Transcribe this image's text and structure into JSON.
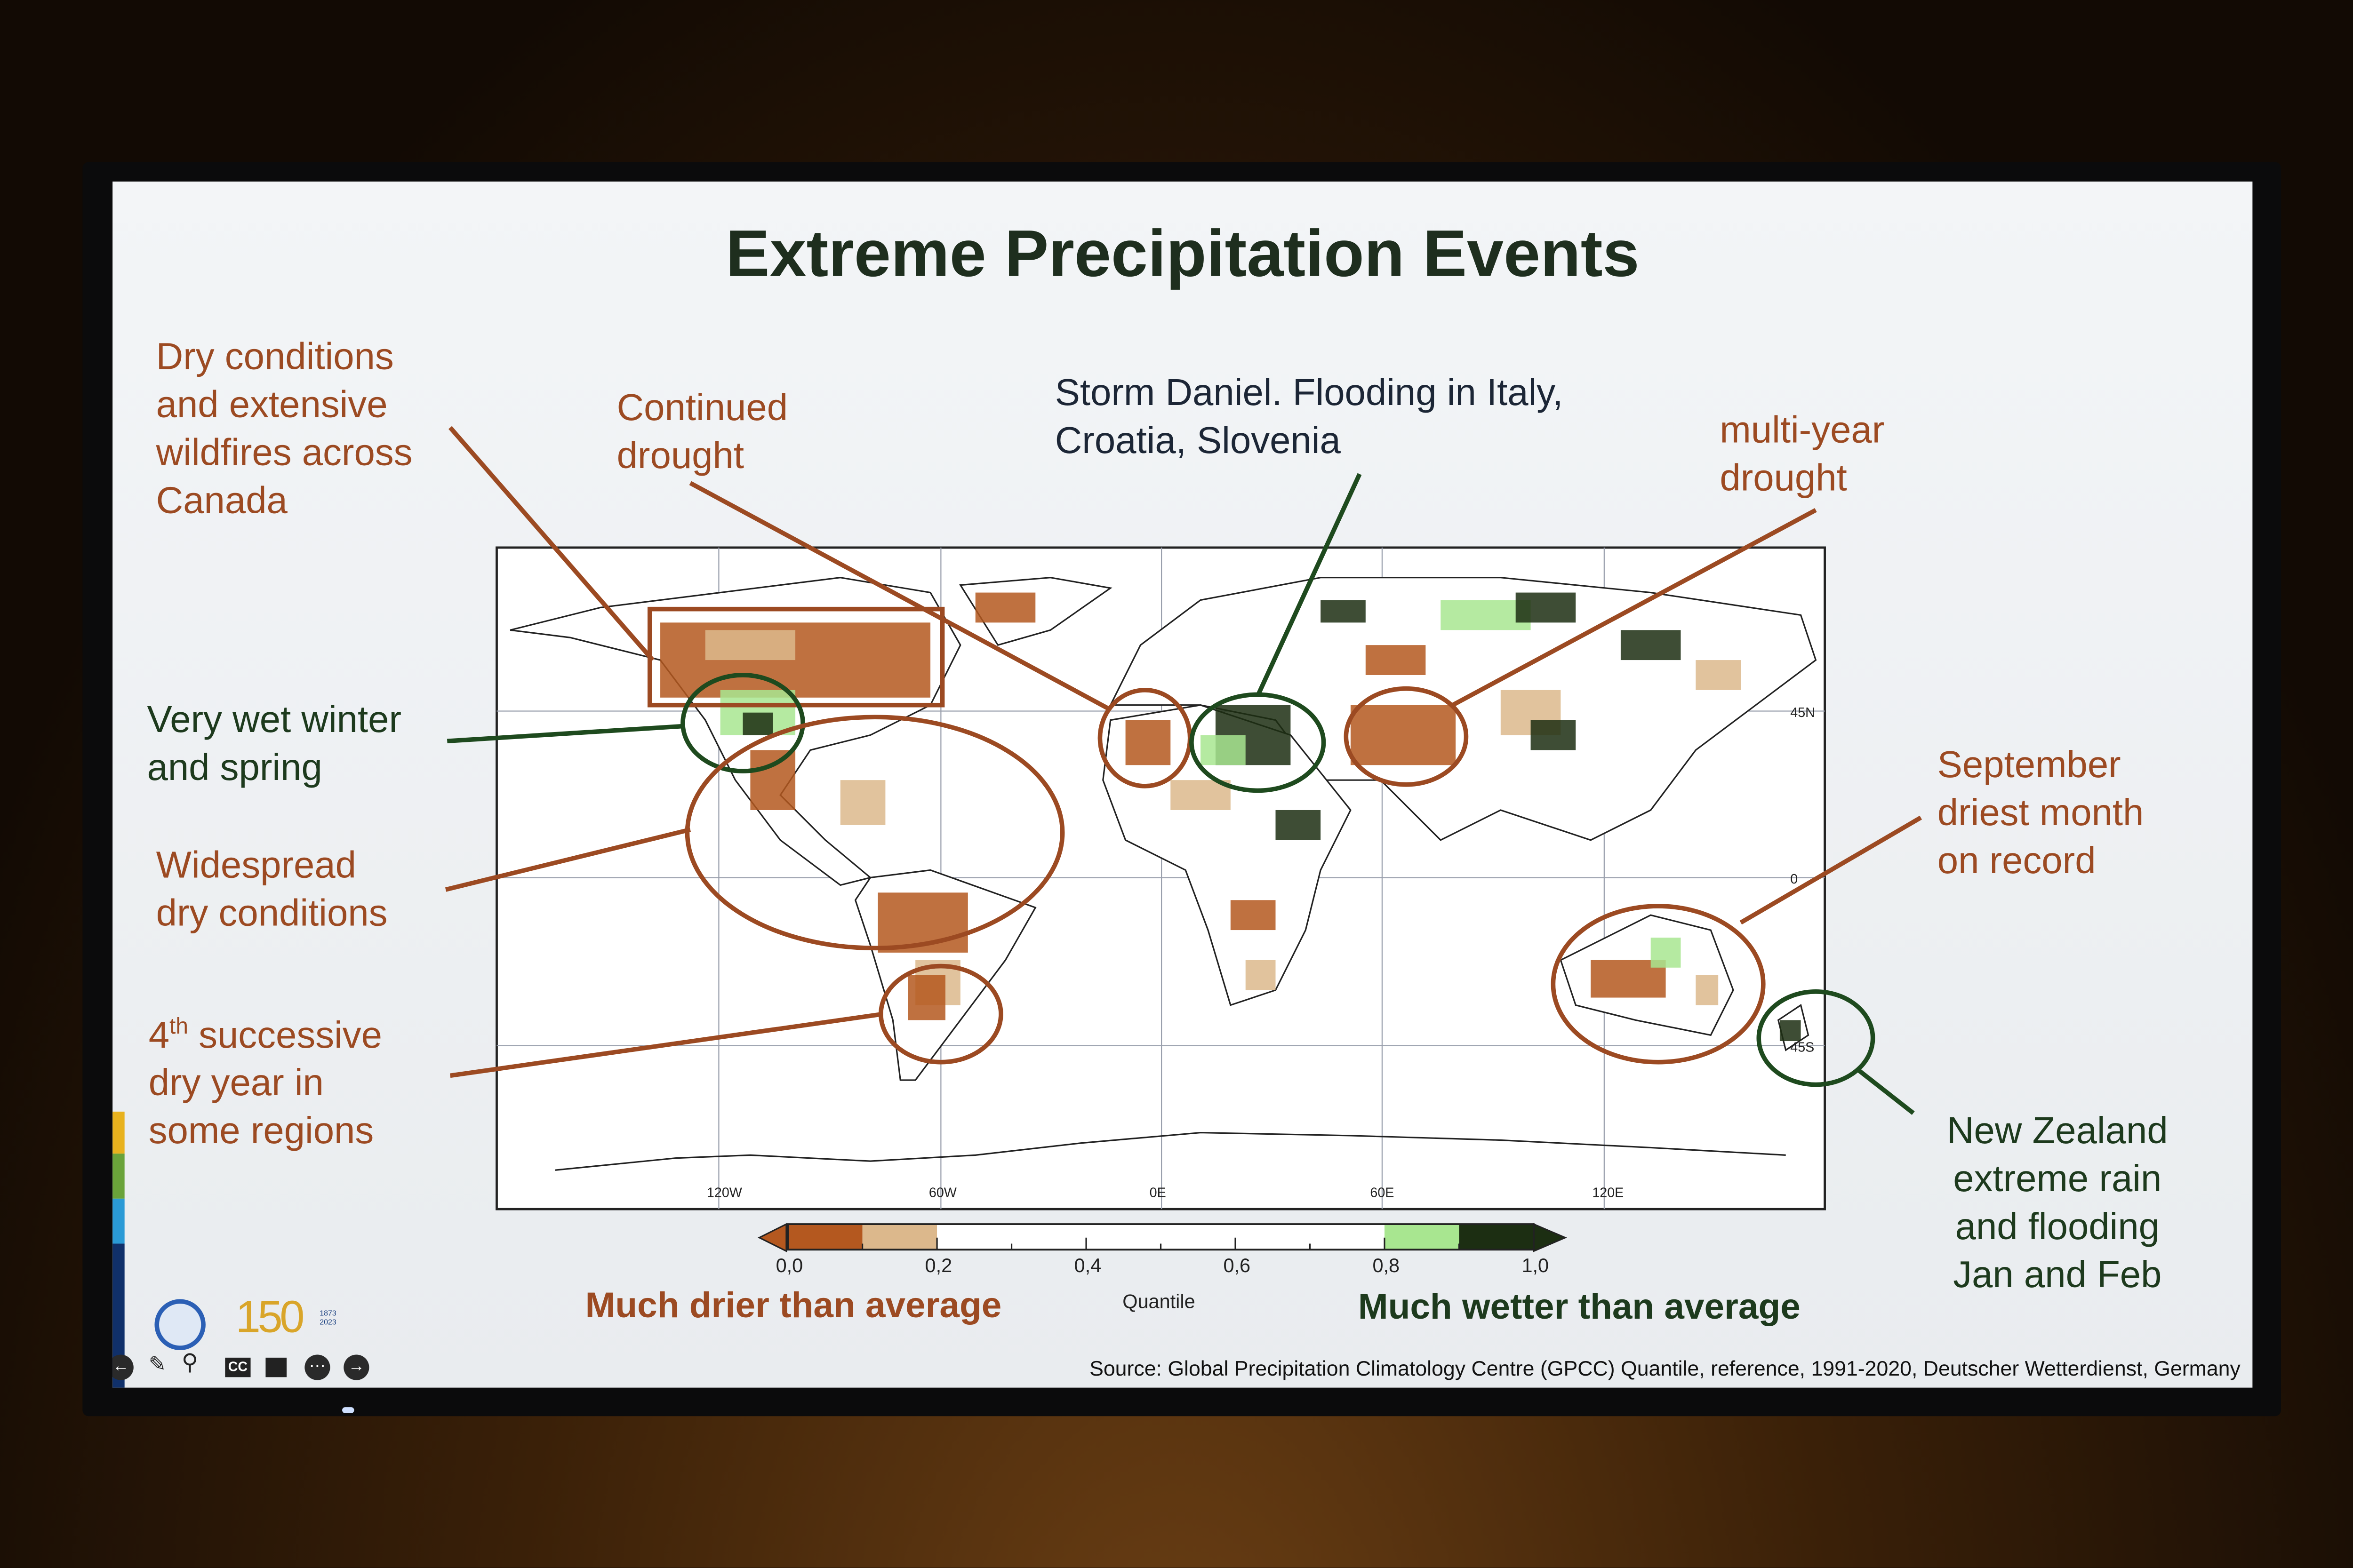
{
  "slide": {
    "title": "Extreme Precipitation Events",
    "annotations": {
      "canada": [
        "Dry conditions",
        "and extensive",
        "wildfires across",
        "Canada"
      ],
      "continued_drought": [
        "Continued",
        "drought"
      ],
      "storm_daniel": [
        "Storm Daniel. Flooding in Italy,",
        "Croatia, Slovenia"
      ],
      "multi_year": [
        "multi-year",
        "drought"
      ],
      "very_wet": [
        "Very wet winter",
        "and spring"
      ],
      "widespread": [
        "Widespread",
        "dry conditions"
      ],
      "successive": {
        "prefix": "4",
        "sup": "th",
        "line1_rest": " successive",
        "lines": [
          "dry year in",
          "some regions"
        ]
      },
      "september": [
        "September",
        "driest month",
        "on record"
      ],
      "new_zealand": [
        "New Zealand",
        "extreme rain",
        "and flooding",
        "Jan and Feb"
      ]
    },
    "map": {
      "lon_labels": [
        "120W",
        "60W",
        "0E",
        "60E",
        "120E"
      ],
      "lat_labels": [
        "45N",
        "0",
        "45S"
      ]
    },
    "colorbar": {
      "ticks": [
        "0,0",
        "0,2",
        "0,4",
        "0,6",
        "0,8",
        "1,0"
      ],
      "label": "Quantile",
      "drier_label": "Much drier than average",
      "wetter_label": "Much wetter than average",
      "colors": {
        "much_drier": "#b4581f",
        "drier": "#dcb88c",
        "normal": "#ffffff",
        "wetter": "#a8e690",
        "much_wetter": "#1c2e12"
      }
    },
    "source": "Source: Global Precipitation Climatology Centre (GPCC) Quantile, reference, 1991-2020, Deutscher Wetterdienst, Germany",
    "logos": {
      "wmo": "WMO",
      "anniversary": "150",
      "years": [
        "1873",
        "2023"
      ]
    },
    "controls": [
      "prev-icon",
      "pen-icon",
      "zoom-icon",
      "captions-icon",
      "camera-icon",
      "more-icon",
      "next-icon"
    ],
    "controls_cc": "CC",
    "accent_colors": {
      "dry": "#9c4a22",
      "wet": "#1d3a1d"
    }
  }
}
